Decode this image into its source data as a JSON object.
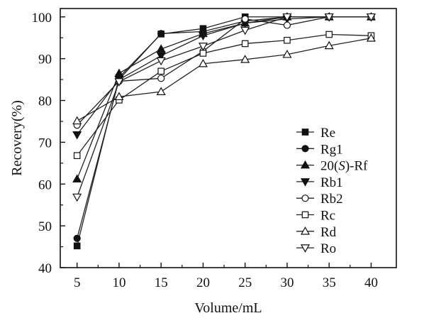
{
  "chart_data": {
    "type": "line",
    "title": "",
    "xlabel": "Volume/mL",
    "ylabel": "Recovery(%)",
    "x": [
      5,
      10,
      15,
      20,
      25,
      30,
      35,
      40
    ],
    "xlim": [
      3,
      43
    ],
    "ylim": [
      40,
      102
    ],
    "xticks": [
      5,
      10,
      15,
      20,
      25,
      30,
      35,
      40
    ],
    "yticks": [
      40,
      50,
      60,
      70,
      80,
      90,
      100
    ],
    "grid": false,
    "legend_position": "lower-right",
    "series": [
      {
        "name": "Re",
        "marker": "square-filled",
        "values": [
          45.2,
          85.5,
          95.9,
          97.2,
          100.0,
          100.0,
          100.0,
          100.0
        ]
      },
      {
        "name": "Rg1",
        "marker": "circle-filled",
        "values": [
          47.0,
          85.0,
          96.0,
          96.5,
          99.0,
          100.0,
          100.0,
          100.0
        ]
      },
      {
        "name": "20(S)-Rf",
        "marker": "triangle-up-filled",
        "values": [
          61.2,
          86.5,
          92.3,
          96.0,
          98.5,
          100.0,
          100.0,
          100.0
        ]
      },
      {
        "name": "Rb1",
        "marker": "triangle-down-filled",
        "values": [
          71.8,
          85.0,
          90.7,
          95.5,
          98.5,
          99.5,
          100.0,
          100.0
        ]
      },
      {
        "name": "Rb2",
        "marker": "circle-open",
        "values": [
          74.1,
          84.6,
          85.3,
          91.8,
          99.5,
          98.0,
          100.0,
          100.0
        ]
      },
      {
        "name": "Rc",
        "marker": "square-open",
        "values": [
          66.8,
          80.1,
          87.0,
          91.3,
          93.6,
          94.4,
          95.8,
          95.5
        ]
      },
      {
        "name": "Rd",
        "marker": "triangle-up-open",
        "values": [
          75.1,
          80.9,
          82.1,
          88.8,
          89.8,
          91.0,
          93.1,
          94.9
        ]
      },
      {
        "name": "Ro",
        "marker": "triangle-down-open",
        "values": [
          56.9,
          84.5,
          89.5,
          93.0,
          96.8,
          100.0,
          100.0,
          100.0
        ]
      }
    ]
  }
}
